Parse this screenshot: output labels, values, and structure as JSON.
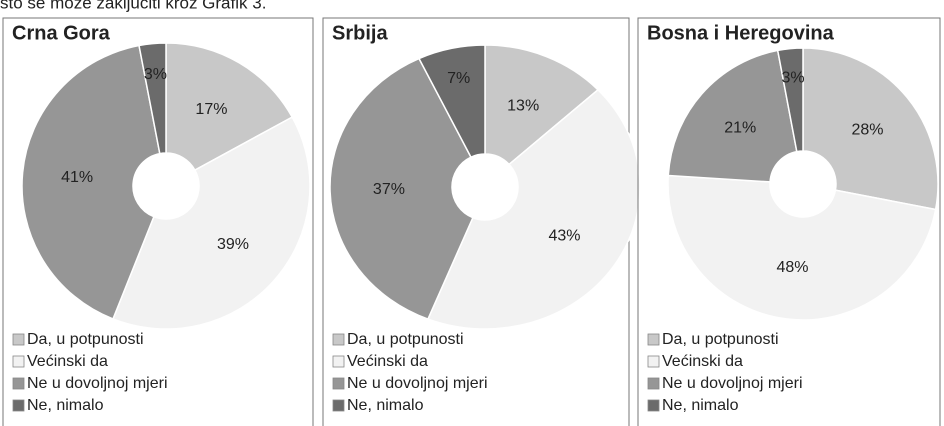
{
  "caption": "što se može zaključiti kroz Grafik 3.",
  "chart_data": [
    {
      "type": "pie",
      "title": "Crna Gora",
      "categories": [
        "Da, u potpunosti",
        "Većinski da",
        "Ne u dovoljnoj mjeri",
        "Ne, nimalo"
      ],
      "values": [
        17,
        39,
        41,
        3
      ],
      "value_labels": [
        "17%",
        "39%",
        "41%",
        "3%"
      ],
      "colors": [
        "#c8c8c8",
        "#f2f2f2",
        "#969696",
        "#6b6b6b"
      ]
    },
    {
      "type": "pie",
      "title": "Srbija",
      "categories": [
        "Da, u potpunosti",
        "Većinski da",
        "Ne u dovoljnoj mjeri",
        "Ne, nimalo"
      ],
      "values": [
        13,
        43,
        37,
        7
      ],
      "value_labels": [
        "13%",
        "43%",
        "37%",
        "7%"
      ],
      "colors": [
        "#c8c8c8",
        "#f2f2f2",
        "#969696",
        "#6b6b6b"
      ]
    },
    {
      "type": "pie",
      "title": "Bosna i Heregovina",
      "categories": [
        "Da, u potpunosti",
        "Većinski da",
        "Ne u dovoljnoj mjeri",
        "Ne, nimalo"
      ],
      "values": [
        28,
        48,
        21,
        3
      ],
      "value_labels": [
        "28%",
        "48%",
        "21%",
        "3%"
      ],
      "colors": [
        "#c8c8c8",
        "#f2f2f2",
        "#969696",
        "#6b6b6b"
      ]
    }
  ]
}
